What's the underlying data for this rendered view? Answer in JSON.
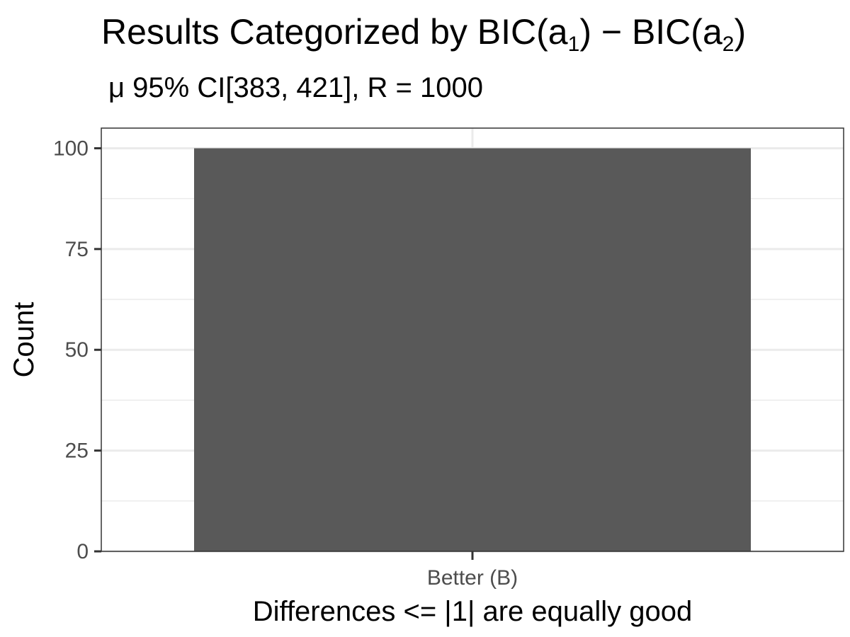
{
  "chart_data": {
    "type": "bar",
    "title_parts": {
      "prefix": "Results Categorized by BIC(a",
      "sub1": "1",
      "mid": ") −  BIC(a",
      "sub2": "2",
      "suffix": ")"
    },
    "subtitle": "μ  95% CI[383, 421], R = 1000",
    "xlabel": "Differences <= |1| are equally good",
    "ylabel": "Count",
    "categories": [
      "Better (B)"
    ],
    "values": [
      100
    ],
    "ylim": [
      0,
      105
    ],
    "yticks": [
      0,
      25,
      50,
      75,
      100
    ],
    "ytick_labels": [
      "0",
      "25",
      "50",
      "75",
      "100"
    ],
    "grid": true,
    "legend": "none",
    "colors": {
      "bar": "#595959",
      "grid": "#ebebeb",
      "panel_border": "#333333",
      "tick_text": "#4d4d4d"
    }
  }
}
